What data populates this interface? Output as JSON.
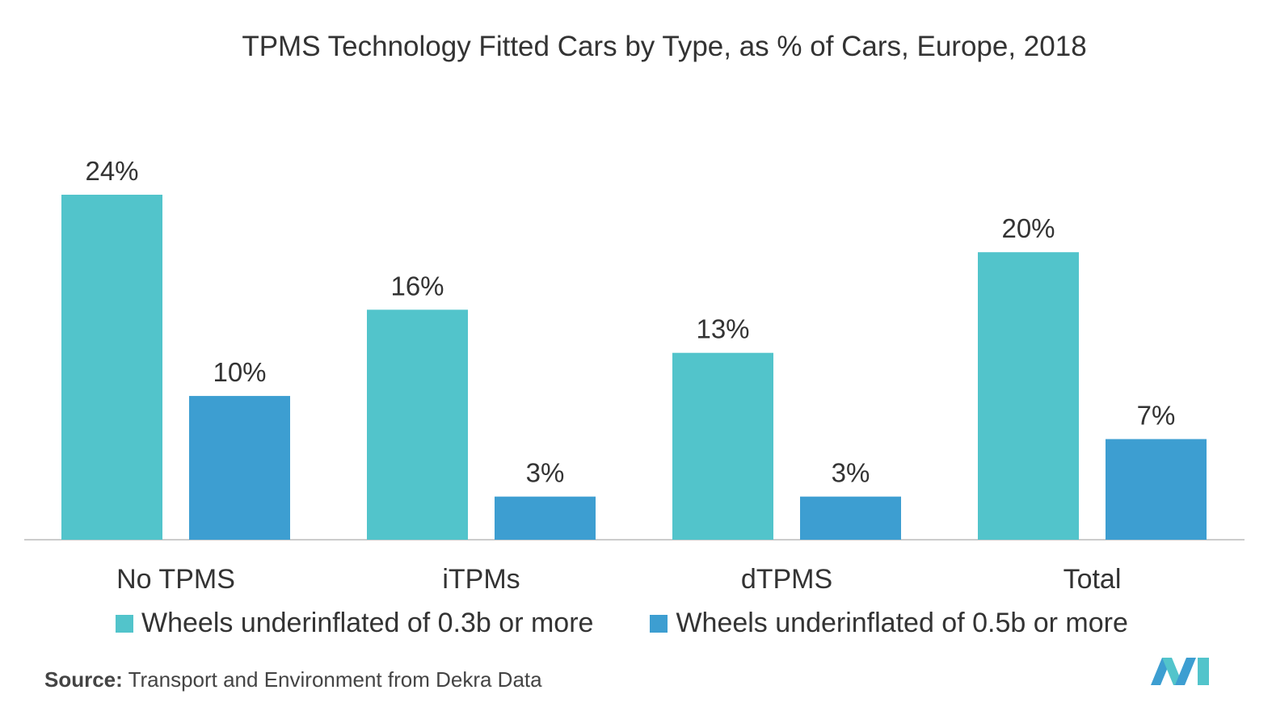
{
  "title": "TPMS Technology Fitted Cars by Type, as % of Cars, Europe, 2018",
  "source": {
    "label": "Source:",
    "text": "Transport and Environment from Dekra Data"
  },
  "colors": {
    "series1": "#52c4cb",
    "series2": "#3d9ed1",
    "axis": "#cccccc",
    "text": "#333333"
  },
  "chart_data": {
    "type": "bar",
    "categories": [
      "No TPMS",
      "iTPMs",
      "dTPMS",
      "Total"
    ],
    "series": [
      {
        "name": "Wheels underinflated of 0.3b or more",
        "values": [
          24,
          16,
          13,
          20
        ],
        "labels": [
          "24%",
          "16%",
          "13%",
          "20%"
        ]
      },
      {
        "name": "Wheels underinflated of 0.5b or more",
        "values": [
          10,
          3,
          3,
          7
        ],
        "labels": [
          "10%",
          "3%",
          "3%",
          "7%"
        ]
      }
    ],
    "ylim": [
      0,
      24
    ],
    "grid": false,
    "legend": "bottom-left"
  }
}
